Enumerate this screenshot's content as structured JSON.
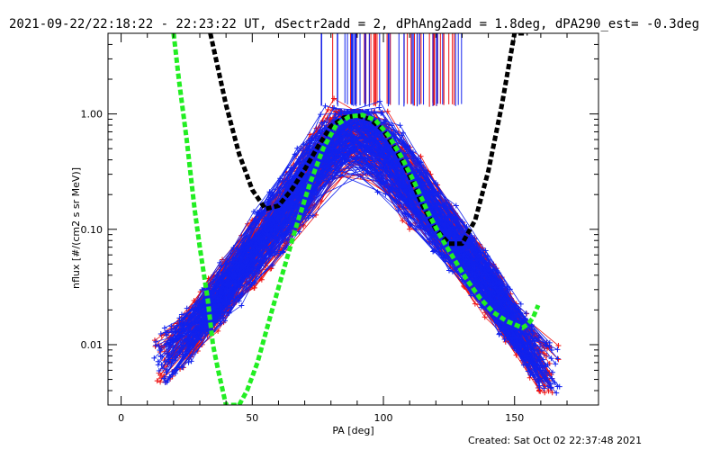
{
  "chart_data": {
    "type": "line",
    "title": "2021-09-22/22:18:22 - 22:23:22 UT, dSectr2add = 2, dPhAng2add = 1.8deg, dPA290_est= -0.3deg",
    "xlabel": "PA [deg]",
    "ylabel": "nflux [#/(cm2 s sr MeV)]",
    "xlim": [
      -5,
      182
    ],
    "ylim": [
      0.003,
      5
    ],
    "yscale": "log",
    "xticks": [
      0,
      50,
      100,
      150
    ],
    "yticks": [
      0.01,
      0.1,
      1.0
    ],
    "ytick_labels": [
      "0.01",
      "0.10",
      "1.00"
    ],
    "grid": false,
    "footer": "Created: Sat Oct 02 22:37:48 2021",
    "colors": {
      "red_traces": "#ee1111",
      "blue_traces": "#1122ee",
      "green_fit": "#22ee22",
      "black_fit": "#000000"
    },
    "series": [
      {
        "style": "black-dashed-thick",
        "x": [
          34,
          40,
          45,
          50,
          55,
          60,
          65,
          70,
          75,
          80,
          85,
          90,
          95,
          100,
          105,
          110,
          115,
          120,
          125,
          130,
          135,
          140,
          145,
          150,
          155
        ],
        "y": [
          5.0,
          1.2,
          0.45,
          0.22,
          0.15,
          0.16,
          0.22,
          0.33,
          0.52,
          0.78,
          0.93,
          0.97,
          0.9,
          0.72,
          0.48,
          0.29,
          0.16,
          0.1,
          0.075,
          0.075,
          0.12,
          0.32,
          1.15,
          5.0,
          5.0
        ]
      },
      {
        "style": "green-dashed-thick",
        "x": [
          20,
          22,
          25,
          28,
          30,
          33,
          35,
          37,
          40,
          42,
          45,
          48,
          52,
          57,
          62,
          67,
          72,
          77,
          82,
          87,
          92,
          97,
          102,
          107,
          112,
          117,
          122,
          127,
          132,
          137,
          142,
          147,
          150,
          153,
          155,
          157,
          159
        ],
        "y": [
          5.0,
          2.0,
          0.6,
          0.15,
          0.07,
          0.025,
          0.01,
          0.006,
          0.003,
          0.003,
          0.003,
          0.004,
          0.007,
          0.018,
          0.045,
          0.11,
          0.25,
          0.5,
          0.8,
          0.95,
          0.98,
          0.88,
          0.65,
          0.42,
          0.25,
          0.14,
          0.085,
          0.055,
          0.036,
          0.025,
          0.019,
          0.016,
          0.015,
          0.014,
          0.015,
          0.017,
          0.022
        ]
      }
    ]
  }
}
